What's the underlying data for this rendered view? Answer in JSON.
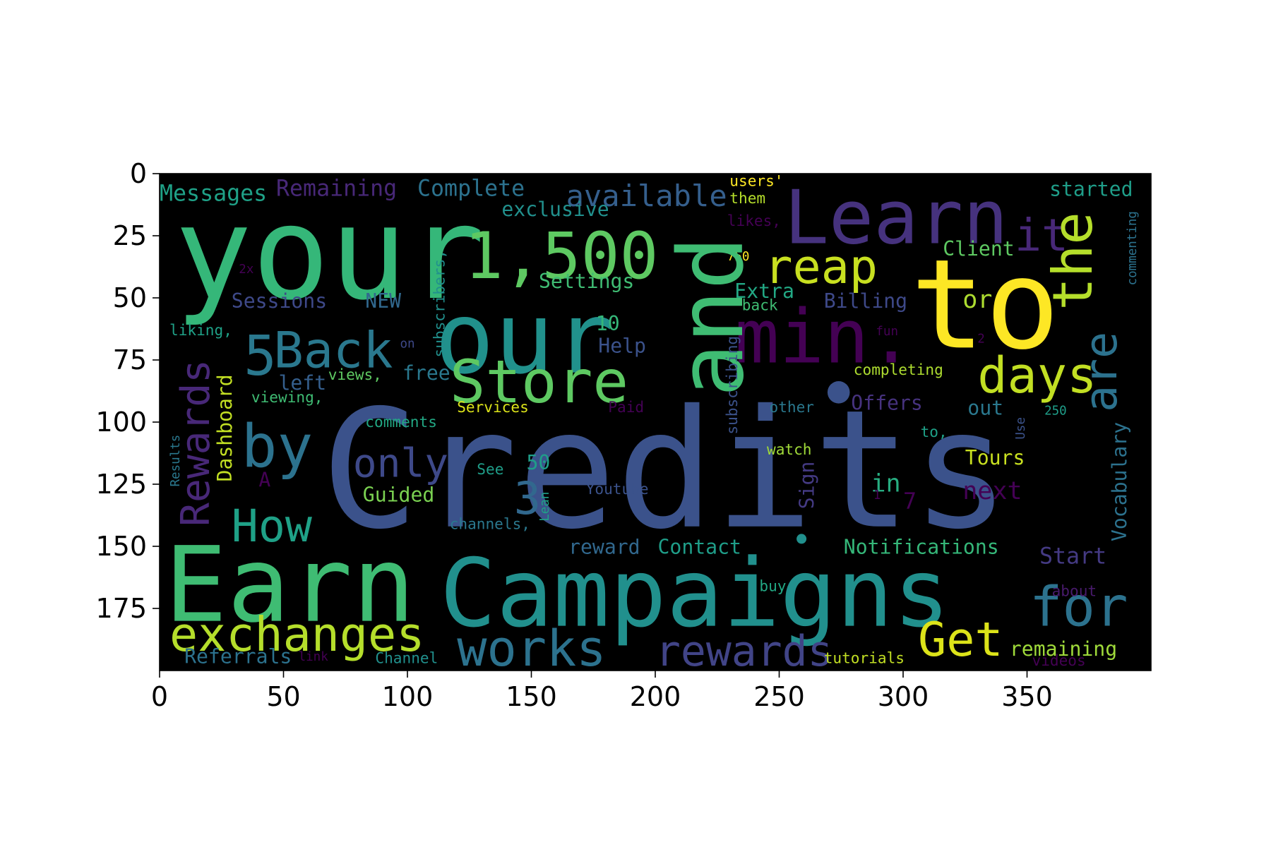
{
  "chart_data": {
    "type": "wordcloud",
    "title": "",
    "xlabel": "",
    "ylabel": "",
    "xlim": [
      0,
      400
    ],
    "ylim": [
      200,
      0
    ],
    "background": "#000000",
    "x_ticks": [
      "0",
      "50",
      "100",
      "150",
      "200",
      "250",
      "300",
      "350"
    ],
    "x_tick_values": [
      0,
      50,
      100,
      150,
      200,
      250,
      300,
      350
    ],
    "y_ticks": [
      "0",
      "25",
      "50",
      "75",
      "100",
      "125",
      "150",
      "175"
    ],
    "y_tick_values": [
      0,
      25,
      50,
      75,
      100,
      125,
      150,
      175
    ],
    "words": [
      {
        "text": "Credits",
        "x": 65,
        "y": 142,
        "size": 66,
        "color": "#3b528b"
      },
      {
        "text": "Campaigns",
        "x": 113,
        "y": 182,
        "size": 38,
        "color": "#21908d"
      },
      {
        "text": "your",
        "x": 6,
        "y": 50,
        "size": 52,
        "color": "#35b779"
      },
      {
        "text": "to",
        "x": 303,
        "y": 70,
        "size": 50,
        "color": "#fde725"
      },
      {
        "text": "Earn",
        "x": 2,
        "y": 180,
        "size": 42,
        "color": "#3fbc73"
      },
      {
        "text": "our",
        "x": 111,
        "y": 80,
        "size": 40,
        "color": "#21918c"
      },
      {
        "text": "Learn",
        "x": 252,
        "y": 28,
        "size": 30,
        "color": "#46327e"
      },
      {
        "text": "1,500",
        "x": 123,
        "y": 42,
        "size": 26,
        "color": "#5ec962"
      },
      {
        "text": "min.",
        "x": 232,
        "y": 76,
        "size": 30,
        "color": "#440154"
      },
      {
        "text": "Store",
        "x": 117,
        "y": 92,
        "size": 24,
        "color": "#5ec962"
      },
      {
        "text": "Back",
        "x": 46,
        "y": 78,
        "size": 20,
        "color": "#2a788e"
      },
      {
        "text": "5",
        "x": 34,
        "y": 81,
        "size": 22,
        "color": "#2a788e"
      },
      {
        "text": "exchanges",
        "x": 4,
        "y": 192,
        "size": 19,
        "color": "#b5de2b"
      },
      {
        "text": "by",
        "x": 33,
        "y": 118,
        "size": 24,
        "color": "#2c728e"
      },
      {
        "text": "How",
        "x": 29,
        "y": 148,
        "size": 18,
        "color": "#1fa187"
      },
      {
        "text": "works",
        "x": 120,
        "y": 198,
        "size": 20,
        "color": "#2c728e"
      },
      {
        "text": "rewards",
        "x": 200,
        "y": 198,
        "size": 17,
        "color": "#414487"
      },
      {
        "text": "Get",
        "x": 306,
        "y": 194,
        "size": 19,
        "color": "#dce319"
      },
      {
        "text": "for",
        "x": 351,
        "y": 182,
        "size": 22,
        "color": "#2c728e"
      },
      {
        "text": "days",
        "x": 330,
        "y": 88,
        "size": 20,
        "color": "#c2df23"
      },
      {
        "text": "reap",
        "x": 244,
        "y": 44,
        "size": 19,
        "color": "#c8e020"
      },
      {
        "text": "it",
        "x": 345,
        "y": 31,
        "size": 18,
        "color": "#482878"
      },
      {
        "text": "available",
        "x": 164,
        "y": 13,
        "size": 12,
        "color": "#355f8d"
      },
      {
        "text": "only",
        "x": 78,
        "y": 122,
        "size": 16,
        "color": "#3e4989"
      },
      {
        "text": "3",
        "x": 143,
        "y": 137,
        "size": 18,
        "color": "#31688e"
      },
      {
        "text": "Messages",
        "x": 0,
        "y": 11,
        "size": 9,
        "color": "#1fa187"
      },
      {
        "text": "Remaining",
        "x": 47,
        "y": 9,
        "size": 9,
        "color": "#482878"
      },
      {
        "text": "Complete",
        "x": 104,
        "y": 9,
        "size": 9,
        "color": "#2c728e"
      },
      {
        "text": "exclusive",
        "x": 138,
        "y": 17,
        "size": 8,
        "color": "#21908d"
      },
      {
        "text": "started",
        "x": 359,
        "y": 9,
        "size": 8,
        "color": "#1f9e89"
      },
      {
        "text": "Client",
        "x": 316,
        "y": 33,
        "size": 8,
        "color": "#5ec962"
      },
      {
        "text": "or",
        "x": 324,
        "y": 54,
        "size": 10,
        "color": "#addc30"
      },
      {
        "text": "Billing",
        "x": 268,
        "y": 54,
        "size": 8,
        "color": "#3e4989"
      },
      {
        "text": "Extra",
        "x": 232,
        "y": 50,
        "size": 8,
        "color": "#22a884"
      },
      {
        "text": "Settings",
        "x": 153,
        "y": 46,
        "size": 8,
        "color": "#3fbc73"
      },
      {
        "text": "Sessions",
        "x": 29,
        "y": 54,
        "size": 8,
        "color": "#3e4989"
      },
      {
        "text": "NEW",
        "x": 83,
        "y": 54,
        "size": 8,
        "color": "#31688e"
      },
      {
        "text": "Help",
        "x": 177,
        "y": 72,
        "size": 8,
        "color": "#3b528b"
      },
      {
        "text": "10",
        "x": 176,
        "y": 63,
        "size": 8,
        "color": "#35b779"
      },
      {
        "text": "left",
        "x": 48,
        "y": 87,
        "size": 8,
        "color": "#355f8d"
      },
      {
        "text": "free",
        "x": 98,
        "y": 83,
        "size": 8,
        "color": "#2a788e"
      },
      {
        "text": "Offers",
        "x": 279,
        "y": 95,
        "size": 8,
        "color": "#46327e"
      },
      {
        "text": "out",
        "x": 326,
        "y": 97,
        "size": 8,
        "color": "#2a788e"
      },
      {
        "text": "Tours",
        "x": 325,
        "y": 117,
        "size": 8,
        "color": "#c8e020"
      },
      {
        "text": "in",
        "x": 287,
        "y": 128,
        "size": 10,
        "color": "#27ad81"
      },
      {
        "text": "next",
        "x": 324,
        "y": 131,
        "size": 10,
        "color": "#440154"
      },
      {
        "text": "Guided",
        "x": 82,
        "y": 132,
        "size": 8,
        "color": "#7ad151"
      },
      {
        "text": "50",
        "x": 148,
        "y": 119,
        "size": 8,
        "color": "#1f9e89"
      },
      {
        "text": "reward",
        "x": 165,
        "y": 153,
        "size": 8,
        "color": "#31688e"
      },
      {
        "text": "Contact",
        "x": 201,
        "y": 153,
        "size": 8,
        "color": "#1f9e89"
      },
      {
        "text": "Notifications",
        "x": 276,
        "y": 153,
        "size": 8,
        "color": "#35b779"
      },
      {
        "text": "Start",
        "x": 355,
        "y": 157,
        "size": 9,
        "color": "#443a83"
      },
      {
        "text": "remaining",
        "x": 343,
        "y": 194,
        "size": 8,
        "color": "#9fda3a"
      },
      {
        "text": "Referrals",
        "x": 10,
        "y": 197,
        "size": 8,
        "color": "#2c728e"
      },
      {
        "text": "Channel",
        "x": 87,
        "y": 197,
        "size": 6,
        "color": "#21908d"
      },
      {
        "text": "link",
        "x": 56,
        "y": 196,
        "size": 5,
        "color": "#440154"
      },
      {
        "text": "tutorials",
        "x": 268,
        "y": 197,
        "size": 6,
        "color": "#c2df23"
      },
      {
        "text": "videos",
        "x": 352,
        "y": 198,
        "size": 6,
        "color": "#440154"
      },
      {
        "text": "about",
        "x": 360,
        "y": 170,
        "size": 6,
        "color": "#481a6c"
      },
      {
        "text": "buy",
        "x": 242,
        "y": 168,
        "size": 6,
        "color": "#22a884"
      },
      {
        "text": "watch",
        "x": 245,
        "y": 113,
        "size": 6,
        "color": "#a0da39"
      },
      {
        "text": "other",
        "x": 246,
        "y": 96,
        "size": 6,
        "color": "#2a788e"
      },
      {
        "text": "250",
        "x": 357,
        "y": 97,
        "size": 5,
        "color": "#1f9e89"
      },
      {
        "text": "completing",
        "x": 280,
        "y": 81,
        "size": 6,
        "color": "#addc30"
      },
      {
        "text": "fun",
        "x": 289,
        "y": 65,
        "size": 5,
        "color": "#440154"
      },
      {
        "text": "back",
        "x": 235,
        "y": 55,
        "size": 6,
        "color": "#3fbc73"
      },
      {
        "text": "750",
        "x": 229,
        "y": 35,
        "size": 5,
        "color": "#fde725"
      },
      {
        "text": "users'",
        "x": 230,
        "y": 5,
        "size": 6,
        "color": "#fde725"
      },
      {
        "text": "them",
        "x": 230,
        "y": 12,
        "size": 6,
        "color": "#b5de2b"
      },
      {
        "text": "likes,",
        "x": 229,
        "y": 21,
        "size": 6,
        "color": "#440154"
      },
      {
        "text": "Services",
        "x": 120,
        "y": 96,
        "size": 6,
        "color": "#dce319"
      },
      {
        "text": "Paid",
        "x": 181,
        "y": 96,
        "size": 6,
        "color": "#440154"
      },
      {
        "text": "comments",
        "x": 83,
        "y": 102,
        "size": 6,
        "color": "#22a884"
      },
      {
        "text": "viewing,",
        "x": 37,
        "y": 92,
        "size": 6,
        "color": "#3fbc73"
      },
      {
        "text": "views,",
        "x": 68,
        "y": 83,
        "size": 6,
        "color": "#5ec962"
      },
      {
        "text": "liking,",
        "x": 4,
        "y": 65,
        "size": 6,
        "color": "#1fa187"
      },
      {
        "text": "on",
        "x": 97,
        "y": 70,
        "size": 5,
        "color": "#3e4989"
      },
      {
        "text": "See",
        "x": 128,
        "y": 121,
        "size": 6,
        "color": "#1f9e89"
      },
      {
        "text": "Youtube",
        "x": 172,
        "y": 129,
        "size": 6,
        "color": "#3b528b"
      },
      {
        "text": "channels,",
        "x": 117,
        "y": 143,
        "size": 6,
        "color": "#2a788e"
      },
      {
        "text": "A",
        "x": 40,
        "y": 126,
        "size": 8,
        "color": "#440154"
      },
      {
        "text": "7",
        "x": 300,
        "y": 135,
        "size": 9,
        "color": "#440154"
      },
      {
        "text": "1",
        "x": 288,
        "y": 131,
        "size": 5,
        "color": "#440154"
      },
      {
        "text": "2",
        "x": 330,
        "y": 68,
        "size": 5,
        "color": "#440154"
      },
      {
        "text": "2x",
        "x": 32,
        "y": 40,
        "size": 5,
        "color": "#440154"
      },
      {
        "text": "to,",
        "x": 307,
        "y": 106,
        "size": 6,
        "color": "#1fa187"
      }
    ],
    "vertical_words": [
      {
        "text": "and",
        "x": 235,
        "y": 90,
        "size": 36,
        "color": "#3fbc73"
      },
      {
        "text": "the",
        "x": 376,
        "y": 55,
        "size": 22,
        "color": "#b5de2b"
      },
      {
        "text": "are",
        "x": 386,
        "y": 96,
        "size": 18,
        "color": "#2c728e"
      },
      {
        "text": "Rewards",
        "x": 20,
        "y": 142,
        "size": 16,
        "color": "#482878"
      },
      {
        "text": "Dashboard",
        "x": 29,
        "y": 124,
        "size": 8,
        "color": "#c2df23"
      },
      {
        "text": "Vocabulary",
        "x": 390,
        "y": 148,
        "size": 8,
        "color": "#2c728e"
      },
      {
        "text": "Sign",
        "x": 264,
        "y": 135,
        "size": 8,
        "color": "#443a83"
      },
      {
        "text": "subscribers,",
        "x": 115,
        "y": 74,
        "size": 6,
        "color": "#21908d"
      },
      {
        "text": "subscribing",
        "x": 233,
        "y": 105,
        "size": 6,
        "color": "#3b528b"
      },
      {
        "text": "commenting",
        "x": 394,
        "y": 45,
        "size": 5,
        "color": "#2c728e"
      },
      {
        "text": "Results",
        "x": 8,
        "y": 126,
        "size": 5,
        "color": "#2a788e"
      },
      {
        "text": "Use",
        "x": 349,
        "y": 107,
        "size": 5,
        "color": "#3b528b"
      },
      {
        "text": "Lean",
        "x": 157,
        "y": 140,
        "size": 5,
        "color": "#1fa187"
      }
    ],
    "dots": [
      {
        "x": 274,
        "y": 88,
        "size": 9,
        "color": "#3b528b"
      },
      {
        "x": 259,
        "y": 147,
        "size": 4,
        "color": "#21908d"
      }
    ]
  }
}
